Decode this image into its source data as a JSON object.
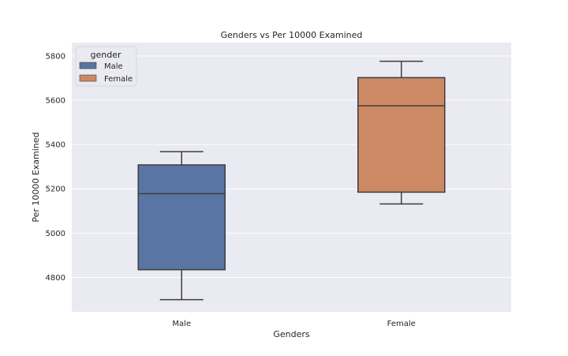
{
  "chart_data": {
    "type": "box",
    "title": "Genders vs Per 10000 Examined",
    "xlabel": "Genders",
    "ylabel": "Per 10000 Examined",
    "ylim": [
      4645,
      5860
    ],
    "yticks": [
      4800,
      5000,
      5200,
      5400,
      5600,
      5800
    ],
    "grid": true,
    "legend": {
      "title": "gender",
      "placement": "top-left",
      "entries": [
        "Male",
        "Female"
      ]
    },
    "categories": [
      "Male",
      "Female"
    ],
    "boxes": [
      {
        "category": "Male",
        "color": "#5975a4",
        "whisker_low": 4700,
        "q1": 4835,
        "median": 5178,
        "q3": 5308,
        "whisker_high": 5368
      },
      {
        "category": "Female",
        "color": "#cc8963",
        "whisker_low": 5132,
        "q1": 5185,
        "median": 5575,
        "q3": 5702,
        "whisker_high": 5776
      }
    ]
  }
}
